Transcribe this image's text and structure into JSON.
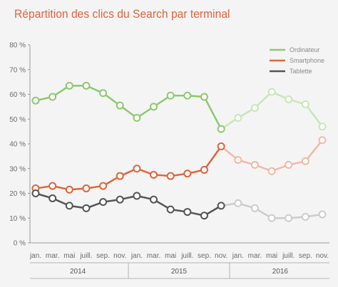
{
  "chart_data": {
    "type": "line",
    "title": "Répartition des clics du Search par terminal",
    "xlabel": "",
    "ylabel": "",
    "ylim": [
      0,
      80
    ],
    "yticks": [
      "0 %",
      "10 %",
      "20 %",
      "30 %",
      "40 %",
      "50 %",
      "60 %",
      "70 %",
      "80 %"
    ],
    "categories": [
      "jan.",
      "mar.",
      "mai",
      "juill.",
      "sep.",
      "nov.",
      "jan.",
      "mar.",
      "mai",
      "juill.",
      "sep.",
      "nov.",
      "jan.",
      "mar.",
      "mai",
      "juill.",
      "sep.",
      "nov."
    ],
    "years": [
      {
        "label": "2014",
        "start_index": 0,
        "end_index": 5
      },
      {
        "label": "2015",
        "start_index": 6,
        "end_index": 11
      },
      {
        "label": "2016",
        "start_index": 12,
        "end_index": 17
      }
    ],
    "faded_from_index": 12,
    "grid": false,
    "legend_position": "top-right",
    "series": [
      {
        "name": "Ordinateur",
        "color": "#8dc86f",
        "faded_color": "#c9e6b8",
        "values": [
          57.5,
          59,
          63.5,
          63.5,
          60.5,
          55.5,
          50.5,
          55,
          59.5,
          59.5,
          59,
          46,
          50.5,
          54.5,
          61,
          58,
          56,
          47
        ]
      },
      {
        "name": "Smartphone",
        "color": "#e0643b",
        "faded_color": "#f2b9a3",
        "values": [
          22,
          23,
          21.5,
          22,
          23,
          27,
          30,
          27.5,
          27,
          28,
          29.5,
          39,
          33.5,
          31.5,
          29,
          31.5,
          33,
          41.5
        ]
      },
      {
        "name": "Tablette",
        "color": "#555555",
        "faded_color": "#cccccc",
        "values": [
          20,
          18,
          15,
          14,
          16.5,
          17.5,
          19,
          17.5,
          13.5,
          12.5,
          11,
          15,
          16,
          14,
          10,
          10,
          10.5,
          11.5
        ]
      }
    ]
  }
}
